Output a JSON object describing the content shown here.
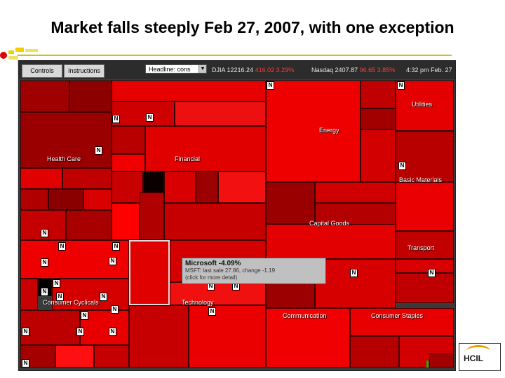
{
  "slide": {
    "title": "Market falls steeply Feb 27, 2007, with one exception"
  },
  "toolbar": {
    "controls_label": "Controls",
    "instructions_label": "Instructions",
    "dropdown_value": "Headline: cons",
    "djia_label": "DJIA",
    "djia_value": "12216.24",
    "djia_change": "416.02",
    "djia_pct": "3.29%",
    "nasdaq_label": "Nasdaq",
    "nasdaq_value": "2407.87",
    "nasdaq_change": "96.65",
    "nasdaq_pct": "3.85%",
    "time_label": "4:32 pm",
    "date_label": "Feb. 27"
  },
  "sectors": {
    "health_care": "Health Care",
    "financial": "Financial",
    "energy": "Energy",
    "utilities": "Utilities",
    "basic_materials": "Basic Materials",
    "capital_goods": "Capital Goods",
    "transport": "Transport",
    "technology": "Technology",
    "consumer_cyclicals": "Consumer Cyclicals",
    "communication": "Communication",
    "consumer_staples": "Consumer Staples"
  },
  "news_badge": "N",
  "tooltip": {
    "title": "Microsoft -4.09%",
    "line1": "MSFT: last sale 27.86, change -1.19",
    "line2": "(click for more detail)"
  },
  "logo": {
    "text": "HCIL"
  },
  "colors": {
    "strong_down": "#ff0000",
    "mid_down": "#d40000",
    "dark_down": "#8c0000",
    "up": "#00c000"
  }
}
